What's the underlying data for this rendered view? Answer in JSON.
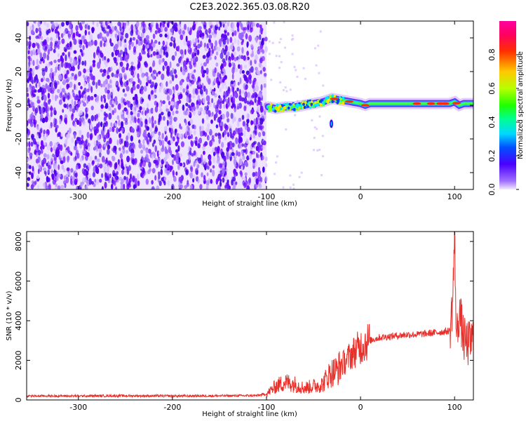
{
  "title": "C2E3.2022.365.03.08.R20",
  "chart_data": [
    {
      "type": "heatmap",
      "xlabel": "Height of straight line (km)",
      "ylabel": "Frequency (Hz)",
      "xlim": [
        -355,
        120
      ],
      "ylim": [
        -50,
        50
      ],
      "xticks": [
        -300,
        -200,
        -100,
        0,
        100
      ],
      "yticks": [
        -40,
        -20,
        0,
        20,
        40
      ],
      "noise_region_x": [
        -355,
        -100
      ],
      "signal_trace": {
        "x": [
          -98,
          -90,
          -80,
          -70,
          -60,
          -50,
          -40,
          -30,
          -20,
          -10,
          0,
          5,
          10,
          20,
          40,
          60,
          80,
          95,
          100,
          105,
          110,
          120
        ],
        "y": [
          -1,
          -2,
          -1,
          -1,
          0,
          1,
          2,
          4,
          3,
          2,
          1,
          0,
          1,
          1,
          1,
          1,
          1,
          1,
          2,
          0,
          1,
          1
        ]
      },
      "colorbar": {
        "label": "Normalized spectral amplitude",
        "range": [
          0.0,
          1.0
        ],
        "ticks": [
          "0.0",
          "0.2",
          "0.4",
          "0.6",
          "0.8"
        ],
        "colormap": "hsv-rainbow"
      }
    },
    {
      "type": "line",
      "xlabel": "Height of straight line (km)",
      "ylabel": "SNR (10 * v/v)",
      "xlim": [
        -355,
        120
      ],
      "ylim": [
        0,
        8500
      ],
      "xticks": [
        -300,
        -200,
        -100,
        0,
        100
      ],
      "yticks": [
        0,
        2000,
        4000,
        6000,
        8000
      ],
      "line_color": "#e8302a",
      "x": [
        -355,
        -300,
        -250,
        -200,
        -150,
        -110,
        -100,
        -90,
        -80,
        -70,
        -60,
        -50,
        -40,
        -35,
        -30,
        -25,
        -20,
        -15,
        -10,
        -5,
        0,
        5,
        10,
        20,
        30,
        40,
        50,
        60,
        70,
        80,
        90,
        95,
        98,
        100,
        102,
        105,
        110,
        115,
        120
      ],
      "y": [
        200,
        200,
        210,
        200,
        210,
        220,
        300,
        700,
        900,
        800,
        600,
        700,
        800,
        1200,
        1400,
        1500,
        1800,
        2000,
        2300,
        2500,
        2700,
        2900,
        3000,
        3150,
        3200,
        3250,
        3300,
        3300,
        3350,
        3400,
        3450,
        3500,
        5000,
        8300,
        3000,
        4500,
        3000,
        2800,
        3100
      ]
    }
  ]
}
